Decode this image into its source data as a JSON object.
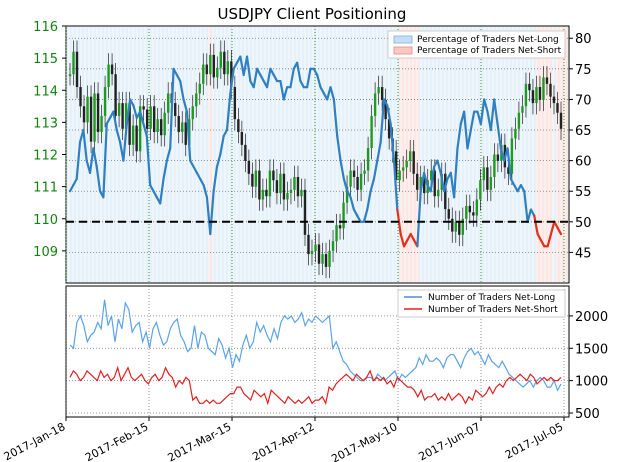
{
  "chart_data": [
    {
      "type": "line",
      "title": "USDJPY Client Positioning",
      "x_tick_labels": [
        "2017-Jan-18",
        "2017-Feb-15",
        "2017-Mar-15",
        "2017-Apr-12",
        "2017-May-10",
        "2017-Jun-07",
        "2017-Jul-05"
      ],
      "y_left_ticks": [
        "116",
        "115",
        "114",
        "113",
        "112",
        "111",
        "110",
        "109"
      ],
      "y_left_range": [
        108,
        116
      ],
      "y_right_ticks": [
        "80",
        "75",
        "70",
        "65",
        "60",
        "55",
        "50",
        "45"
      ],
      "y_right_range": [
        40,
        82
      ],
      "reference_line": 50,
      "grid": "dotted",
      "legend_position": "top-right",
      "legend": [
        {
          "label": "Percentage of Traders Net-Long",
          "color": "#c6dff5"
        },
        {
          "label": "Percentage of Traders Net-Short",
          "color": "#f8c9c4"
        }
      ],
      "series": [
        {
          "name": "Percentage of Traders Net-Long",
          "axis": "right",
          "values": [
            55,
            56,
            57,
            63,
            65,
            60,
            58,
            62,
            59,
            55,
            54,
            66,
            67,
            68,
            65,
            63,
            60,
            66,
            70,
            69,
            67,
            68,
            66,
            64,
            56,
            55,
            54,
            53,
            57,
            60,
            62,
            75,
            74,
            73,
            70,
            68,
            60,
            59,
            58,
            57,
            56,
            54,
            48,
            55,
            59,
            61,
            64,
            65,
            71,
            75,
            76,
            77,
            74,
            77,
            73,
            72,
            75,
            74,
            73,
            72,
            75,
            74,
            73,
            73,
            70,
            72,
            72,
            75,
            76,
            73,
            72,
            72,
            75,
            75,
            74,
            72,
            71,
            70,
            72,
            70,
            64,
            60,
            57,
            55,
            54,
            52,
            51,
            50,
            50,
            52,
            55,
            57,
            60,
            63,
            70,
            69,
            66,
            60,
            52,
            48,
            46,
            47,
            48,
            47,
            46,
            55,
            58,
            56,
            55,
            59,
            60,
            58,
            55,
            57,
            58,
            54,
            62,
            66,
            68,
            62,
            65,
            68,
            68,
            66,
            70,
            68,
            65,
            70,
            66,
            62,
            60,
            62,
            57,
            56,
            55,
            56,
            55,
            50,
            52,
            51,
            48,
            47,
            46,
            46,
            48,
            50,
            49,
            48
          ]
        },
        {
          "name": "USDJPY",
          "axis": "left",
          "values": [
            114.5,
            115.2,
            114.1,
            113.5,
            113.0,
            113.8,
            112.4,
            113.9,
            112.7,
            113.2,
            114.1,
            114.8,
            114.5,
            113.2,
            113.6,
            112.8,
            113.6,
            112.3,
            112.9,
            112.1,
            113.5,
            113.4,
            112.8,
            113.5,
            112.7,
            113.1,
            112.6,
            113.3,
            113.9,
            113.6,
            113.2,
            112.7,
            113.0,
            112.3,
            113.1,
            113.5,
            113.9,
            114.2,
            114.8,
            114.5,
            115.1,
            114.4,
            114.7,
            115.2,
            114.5,
            114.9,
            114.1,
            113.1,
            112.7,
            112.3,
            111.8,
            111.4,
            111.0,
            111.5,
            110.6,
            110.9,
            110.7,
            111.5,
            111.2,
            110.8,
            111.4,
            110.6,
            110.8,
            110.9,
            111.3,
            110.7,
            110.9,
            109.5,
            108.9,
            109.0,
            109.2,
            108.6,
            108.9,
            108.5,
            109.0,
            109.3,
            109.8,
            109.7,
            110.5,
            111.0,
            111.5,
            111.3,
            110.9,
            111.4,
            111.5,
            112.2,
            113.2,
            113.9,
            114.1,
            113.7,
            113.1,
            112.5,
            112.1,
            111.2,
            111.5,
            111.6,
            111.8,
            112.1,
            111.4,
            110.9,
            111.3,
            110.8,
            111.2,
            111.5,
            110.7,
            110.9,
            111.4,
            110.3,
            110.0,
            109.6,
            109.9,
            109.5,
            110.0,
            110.4,
            110.2,
            110.1,
            110.6,
            111.2,
            111.6,
            110.9,
            111.3,
            112.0,
            111.8,
            112.3,
            111.6,
            111.4,
            112.5,
            112.8,
            113.3,
            113.5,
            114.2,
            114.0,
            113.6,
            114.1,
            113.7,
            114.4,
            114.2,
            113.8,
            113.6,
            113.3,
            112.8
          ]
        }
      ]
    },
    {
      "type": "line",
      "y_right_ticks": [
        "2000",
        "1500",
        "1000",
        "500"
      ],
      "y_right_range": [
        500,
        2400
      ],
      "grid": "dotted",
      "legend_position": "top-right",
      "legend": [
        {
          "label": "Number of Traders Net-Long",
          "color": "#4a90d9"
        },
        {
          "label": "Number of Traders Net-Short",
          "color": "#e02020"
        }
      ],
      "series": [
        {
          "name": "Number of Traders Net-Long",
          "axis": "right",
          "values": [
            1550,
            1500,
            1900,
            2000,
            1850,
            1600,
            1700,
            1750,
            1900,
            1800,
            2250,
            1850,
            2000,
            1600,
            1950,
            1800,
            2200,
            2100,
            1750,
            1850,
            1900,
            1600,
            1750,
            1500,
            1800,
            1900,
            1700,
            1550,
            1600,
            1800,
            1900,
            1950,
            1700,
            1600,
            1450,
            1500,
            1850,
            1500,
            1750,
            1700,
            1500,
            1450,
            1400,
            1650,
            1550,
            1350,
            1500,
            1200,
            1400,
            1300,
            1550,
            1700,
            1500,
            1600,
            1900,
            1750,
            1850,
            1700,
            1600,
            1800,
            1650,
            1900,
            2000,
            1950,
            2000,
            1900,
            1950,
            2050,
            1850,
            1950,
            1900,
            2000,
            1950,
            1900,
            1950,
            2000,
            1500,
            1600,
            1450,
            1300,
            1250,
            1150,
            1100,
            1050,
            1000,
            1000,
            1050,
            1050,
            1000,
            1100,
            1050,
            1000,
            1050,
            1100,
            1150,
            1000,
            1100,
            1050,
            1100,
            1150,
            1200,
            1350,
            1250,
            1400,
            1300,
            1300,
            1350,
            1300,
            1200,
            1350,
            1400,
            1400,
            1300,
            1200,
            1350,
            1450,
            1500,
            1400,
            1450,
            1350,
            1250,
            1400,
            1300,
            1250,
            1200,
            1300,
            1200,
            1100,
            1050,
            1000,
            950,
            900,
            950,
            1000,
            900,
            1000,
            1050,
            1000,
            900,
            900,
            1000,
            850,
            950
          ]
        },
        {
          "name": "Number of Traders Net-Short",
          "axis": "right",
          "values": [
            1050,
            1150,
            1100,
            1000,
            1050,
            1150,
            1100,
            1050,
            1000,
            1150,
            1050,
            1100,
            1000,
            1050,
            1200,
            1000,
            1100,
            1200,
            1050,
            1000,
            1050,
            1100,
            1000,
            950,
            1050,
            1100,
            1000,
            1050,
            1200,
            1100,
            1050,
            900,
            1000,
            950,
            1050,
            1000,
            700,
            750,
            650,
            650,
            700,
            650,
            700,
            650,
            650,
            700,
            750,
            800,
            800,
            900,
            900,
            800,
            750,
            700,
            850,
            800,
            750,
            800,
            650,
            850,
            800,
            750,
            700,
            650,
            750,
            700,
            650,
            700,
            650,
            700,
            750,
            650,
            700,
            700,
            750,
            650,
            900,
            850,
            950,
            1000,
            1050,
            1100,
            1050,
            1000,
            1100,
            1050,
            1000,
            1050,
            1150,
            1000,
            1050,
            1000,
            1050,
            950,
            1000,
            900,
            1050,
            1000,
            950,
            900,
            900,
            850,
            750,
            850,
            700,
            750,
            750,
            800,
            700,
            750,
            700,
            800,
            700,
            750,
            800,
            750,
            650,
            750,
            700,
            850,
            800,
            750,
            800,
            900,
            800,
            900,
            950,
            900,
            1000,
            1050,
            1000,
            1050,
            1100,
            1050,
            1000,
            1100,
            1050,
            950,
            1000,
            1050,
            1000,
            1050,
            1000,
            1000,
            1050
          ]
        }
      ]
    }
  ]
}
